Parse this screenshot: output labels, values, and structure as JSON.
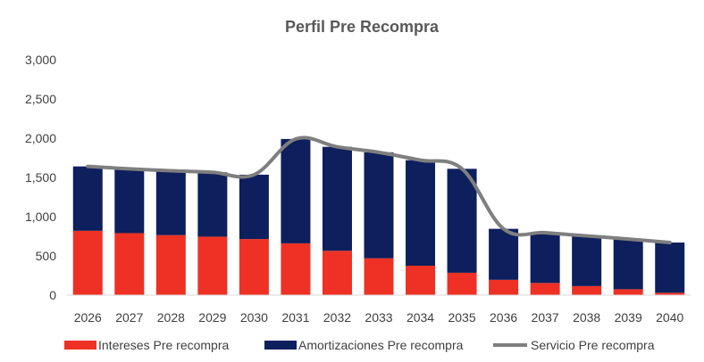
{
  "chart_data": {
    "type": "bar",
    "title": "Perfil Pre Recompra",
    "xlabel": "",
    "ylabel": "",
    "ylim": [
      0,
      3000
    ],
    "yticks": [
      0,
      500,
      1000,
      1500,
      2000,
      2500,
      3000
    ],
    "ytick_labels": [
      "0",
      "500",
      "1,000",
      "1,500",
      "2,000",
      "2,500",
      "3,000"
    ],
    "grid": false,
    "legend_position": "bottom",
    "categories": [
      "2026",
      "2027",
      "2028",
      "2029",
      "2030",
      "2031",
      "2032",
      "2033",
      "2034",
      "2035",
      "2036",
      "2037",
      "2038",
      "2039",
      "2040"
    ],
    "series": [
      {
        "name": "Intereses Pre recompra",
        "kind": "stacked-bar",
        "color": "#ee3124",
        "values": [
          820,
          790,
          765,
          745,
          715,
          660,
          565,
          470,
          375,
          285,
          195,
          155,
          115,
          75,
          30
        ]
      },
      {
        "name": "Amortizaciones Pre recompra",
        "kind": "stacked-bar",
        "color": "#0d1f5c",
        "values": [
          820,
          820,
          820,
          820,
          820,
          1330,
          1325,
          1350,
          1345,
          1325,
          650,
          640,
          640,
          640,
          640
        ]
      },
      {
        "name": "Servicio Pre recompra",
        "kind": "line",
        "color": "#7f7f7f",
        "values": [
          1640,
          1610,
          1585,
          1565,
          1535,
          1990,
          1890,
          1820,
          1720,
          1610,
          845,
          795,
          755,
          715,
          670
        ]
      }
    ]
  }
}
